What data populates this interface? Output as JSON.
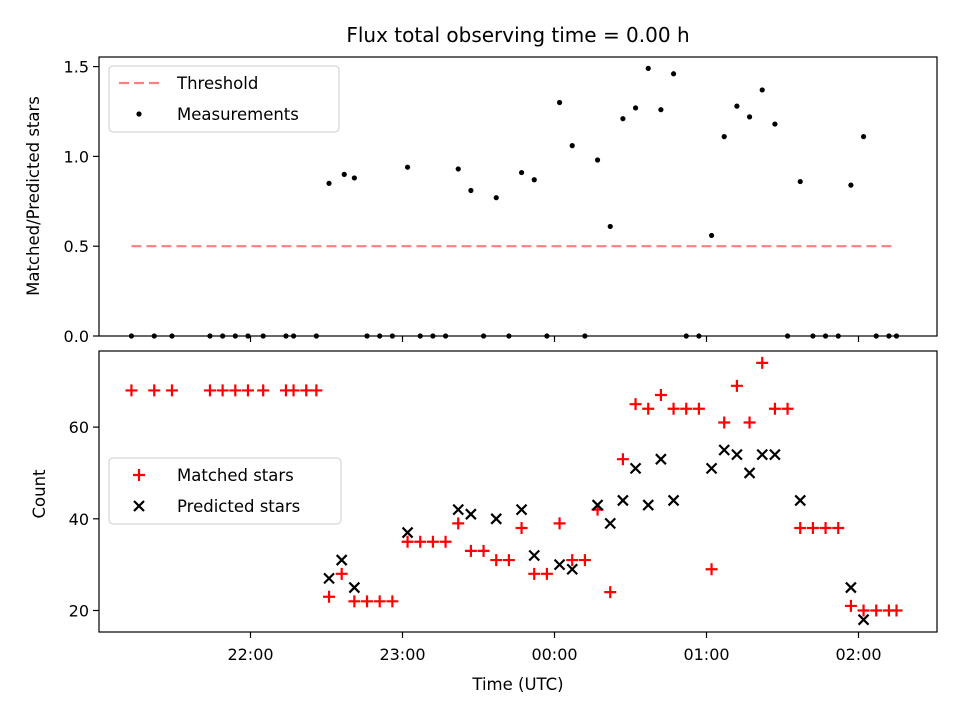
{
  "chart_data": [
    {
      "type": "scatter",
      "title": "Flux total observing time = 0.00 h",
      "xlabel": "",
      "ylabel": "Matched/Predicted stars",
      "ylim": [
        0,
        1.58
      ],
      "yticks": [
        "0.0",
        "0.5",
        "1.0",
        "1.5"
      ],
      "legend": {
        "placement": "top-left",
        "entries": [
          "Threshold",
          "Measurements"
        ]
      },
      "threshold": {
        "name": "Threshold",
        "value": 0.5,
        "x_start": "21:13",
        "x_end": "02:15",
        "color": "#ff7f7f"
      },
      "series": [
        {
          "name": "Measurements",
          "color": "#000000",
          "points": [
            [
              "21:13",
              0
            ],
            [
              "21:22",
              0
            ],
            [
              "21:29",
              0
            ],
            [
              "21:44",
              0
            ],
            [
              "21:49",
              0
            ],
            [
              "21:54",
              0
            ],
            [
              "21:59",
              0
            ],
            [
              "22:05",
              0
            ],
            [
              "22:14",
              0
            ],
            [
              "22:17",
              0
            ],
            [
              "22:26",
              0
            ],
            [
              "22:31",
              0.85
            ],
            [
              "22:37",
              0.9
            ],
            [
              "22:41",
              0.88
            ],
            [
              "22:46",
              0
            ],
            [
              "22:51",
              0
            ],
            [
              "22:56",
              0
            ],
            [
              "23:02",
              0.94
            ],
            [
              "23:07",
              0
            ],
            [
              "23:12",
              0
            ],
            [
              "23:17",
              0
            ],
            [
              "23:22",
              0.93
            ],
            [
              "23:27",
              0.81
            ],
            [
              "23:32",
              0
            ],
            [
              "23:37",
              0.77
            ],
            [
              "23:42",
              0
            ],
            [
              "23:47",
              0.91
            ],
            [
              "23:52",
              0.87
            ],
            [
              "23:57",
              0
            ],
            [
              "00:02",
              1.3
            ],
            [
              "00:07",
              1.06
            ],
            [
              "00:12",
              0
            ],
            [
              "00:17",
              0.98
            ],
            [
              "00:22",
              0.61
            ],
            [
              "00:27",
              1.21
            ],
            [
              "00:32",
              1.27
            ],
            [
              "00:37",
              1.49
            ],
            [
              "00:42",
              1.26
            ],
            [
              "00:47",
              1.46
            ],
            [
              "00:52",
              0
            ],
            [
              "00:57",
              0
            ],
            [
              "01:02",
              0.56
            ],
            [
              "01:07",
              1.11
            ],
            [
              "01:12",
              1.28
            ],
            [
              "01:17",
              1.22
            ],
            [
              "01:22",
              1.37
            ],
            [
              "01:27",
              1.18
            ],
            [
              "01:32",
              0
            ],
            [
              "01:37",
              0.86
            ],
            [
              "01:42",
              0
            ],
            [
              "01:47",
              0
            ],
            [
              "01:52",
              0
            ],
            [
              "01:57",
              0.84
            ],
            [
              "02:02",
              1.11
            ],
            [
              "02:07",
              0
            ],
            [
              "02:12",
              0
            ],
            [
              "02:15",
              0
            ]
          ]
        }
      ]
    },
    {
      "type": "scatter",
      "title": "",
      "xlabel": "Time (UTC)",
      "ylabel": "Count",
      "ylim": [
        15,
        77
      ],
      "yticks": [
        "20",
        "40",
        "60"
      ],
      "xticks": [
        "22:00",
        "23:00",
        "00:00",
        "01:00",
        "02:00"
      ],
      "legend": {
        "placement": "center-left",
        "entries": [
          "Matched stars",
          "Predicted stars"
        ]
      },
      "series": [
        {
          "name": "Matched stars",
          "marker": "plus",
          "color": "#ff0000",
          "points": [
            [
              "21:13",
              68
            ],
            [
              "21:22",
              68
            ],
            [
              "21:29",
              68
            ],
            [
              "21:44",
              68
            ],
            [
              "21:49",
              68
            ],
            [
              "21:54",
              68
            ],
            [
              "21:59",
              68
            ],
            [
              "22:05",
              68
            ],
            [
              "22:14",
              68
            ],
            [
              "22:17",
              68
            ],
            [
              "22:22",
              68
            ],
            [
              "22:26",
              68
            ],
            [
              "22:31",
              23
            ],
            [
              "22:36",
              28
            ],
            [
              "22:41",
              22
            ],
            [
              "22:46",
              22
            ],
            [
              "22:51",
              22
            ],
            [
              "22:56",
              22
            ],
            [
              "23:02",
              35
            ],
            [
              "23:07",
              35
            ],
            [
              "23:12",
              35
            ],
            [
              "23:17",
              35
            ],
            [
              "23:22",
              39
            ],
            [
              "23:27",
              33
            ],
            [
              "23:32",
              33
            ],
            [
              "23:37",
              31
            ],
            [
              "23:42",
              31
            ],
            [
              "23:47",
              38
            ],
            [
              "23:52",
              28
            ],
            [
              "23:57",
              28
            ],
            [
              "00:02",
              39
            ],
            [
              "00:07",
              31
            ],
            [
              "00:12",
              31
            ],
            [
              "00:17",
              42
            ],
            [
              "00:22",
              24
            ],
            [
              "00:27",
              53
            ],
            [
              "00:32",
              65
            ],
            [
              "00:37",
              64
            ],
            [
              "00:42",
              67
            ],
            [
              "00:47",
              64
            ],
            [
              "00:52",
              64
            ],
            [
              "00:57",
              64
            ],
            [
              "01:02",
              29
            ],
            [
              "01:07",
              61
            ],
            [
              "01:12",
              69
            ],
            [
              "01:17",
              61
            ],
            [
              "01:22",
              74
            ],
            [
              "01:27",
              64
            ],
            [
              "01:32",
              64
            ],
            [
              "01:37",
              38
            ],
            [
              "01:42",
              38
            ],
            [
              "01:47",
              38
            ],
            [
              "01:52",
              38
            ],
            [
              "01:57",
              21
            ],
            [
              "02:02",
              20
            ],
            [
              "02:07",
              20
            ],
            [
              "02:12",
              20
            ],
            [
              "02:15",
              20
            ]
          ]
        },
        {
          "name": "Predicted stars",
          "marker": "x",
          "color": "#000000",
          "points": [
            [
              "22:31",
              27
            ],
            [
              "22:36",
              31
            ],
            [
              "22:41",
              25
            ],
            [
              "23:02",
              37
            ],
            [
              "23:22",
              42
            ],
            [
              "23:27",
              41
            ],
            [
              "23:37",
              40
            ],
            [
              "23:47",
              42
            ],
            [
              "23:52",
              32
            ],
            [
              "00:02",
              30
            ],
            [
              "00:07",
              29
            ],
            [
              "00:17",
              43
            ],
            [
              "00:22",
              39
            ],
            [
              "00:27",
              44
            ],
            [
              "00:32",
              51
            ],
            [
              "00:37",
              43
            ],
            [
              "00:42",
              53
            ],
            [
              "00:47",
              44
            ],
            [
              "01:02",
              51
            ],
            [
              "01:07",
              55
            ],
            [
              "01:12",
              54
            ],
            [
              "01:17",
              50
            ],
            [
              "01:22",
              54
            ],
            [
              "01:27",
              54
            ],
            [
              "01:37",
              44
            ],
            [
              "01:57",
              25
            ],
            [
              "02:02",
              18
            ]
          ]
        }
      ]
    }
  ]
}
